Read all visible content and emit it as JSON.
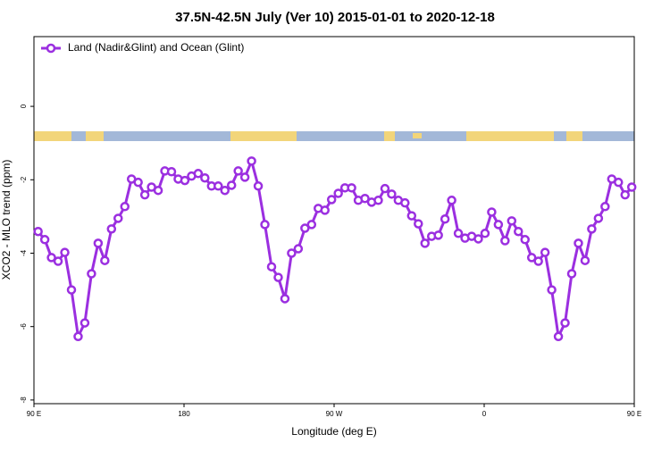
{
  "chart_data": {
    "type": "line",
    "title": "37.5N-42.5N July (Ver 10)   2015-01-01 to 2020-12-18",
    "x_label": "Longitude (deg E)",
    "y_label": "XCO2 - MLO trend (ppm)",
    "xlim": [
      90,
      450
    ],
    "xticks": [
      {
        "value": 90,
        "label": "90 E"
      },
      {
        "value": 180,
        "label": "180"
      },
      {
        "value": 270,
        "label": "90 W"
      },
      {
        "value": 360,
        "label": "0"
      },
      {
        "value": 450,
        "label": "90 E"
      }
    ],
    "ylim": [
      -8.1,
      1.9
    ],
    "yticks": [
      0,
      -2,
      -4,
      -6,
      -8
    ],
    "x": [
      92.5,
      96.5,
      100.5,
      104.5,
      108.5,
      112.5,
      116.5,
      120.5,
      124.5,
      128.5,
      132.5,
      136.5,
      140.5,
      144.5,
      148.5,
      152.5,
      156.5,
      160.5,
      164.5,
      168.5,
      172.5,
      176.5,
      180.5,
      184.5,
      188.5,
      192.5,
      196.5,
      200.5,
      204.5,
      208.5,
      212.5,
      216.5,
      220.5,
      224.5,
      228.5,
      232.5,
      236.5,
      240.5,
      244.5,
      248.5,
      252.5,
      256.5,
      260.5,
      264.5,
      268.5,
      272.5,
      276.5,
      280.5,
      284.5,
      288.5,
      292.5,
      296.5,
      300.5,
      304.5,
      308.5,
      312.5,
      316.5,
      320.5,
      324.5,
      328.5,
      332.5,
      336.5,
      340.5,
      344.5,
      348.5,
      352.5,
      356.5,
      360.5,
      364.5,
      368.5,
      372.5,
      376.5,
      380.5,
      384.5,
      388.5,
      392.5,
      396.5,
      400.5,
      404.5,
      408.5,
      412.5,
      416.5,
      420.5,
      424.5,
      428.5,
      432.5,
      436.5,
      440.5,
      444.5,
      448.5
    ],
    "series": [
      {
        "name": "Land (Nadir&Glint) and Ocean (Glint)",
        "color": "#9b2fe0",
        "values": [
          -3.41,
          -3.63,
          -4.12,
          -4.22,
          -3.98,
          -5.0,
          -6.27,
          -5.9,
          -4.56,
          -3.73,
          -4.2,
          -3.34,
          -3.05,
          -2.73,
          -1.98,
          -2.07,
          -2.41,
          -2.2,
          -2.29,
          -1.76,
          -1.78,
          -1.98,
          -2.02,
          -1.9,
          -1.83,
          -1.95,
          -2.17,
          -2.17,
          -2.29,
          -2.15,
          -1.76,
          -1.93,
          -1.49,
          -2.17,
          -3.22,
          -4.37,
          -4.66,
          -5.24,
          -4.0,
          -3.88,
          -3.32,
          -3.22,
          -2.78,
          -2.83,
          -2.54,
          -2.37,
          -2.22,
          -2.22,
          -2.56,
          -2.51,
          -2.61,
          -2.56,
          -2.24,
          -2.39,
          -2.56,
          -2.63,
          -2.98,
          -3.2,
          -3.73,
          -3.54,
          -3.51,
          -3.07,
          -2.56,
          -3.46,
          -3.59,
          -3.54,
          -3.61,
          -3.46,
          -2.88,
          -3.22,
          -3.66,
          -3.12,
          -3.41,
          -3.63,
          -4.12,
          -4.22,
          -3.98,
          -5.0,
          -6.27,
          -5.9,
          -4.56,
          -3.73,
          -4.2,
          -3.34,
          -3.05,
          -2.73,
          -1.98,
          -2.07,
          -2.41,
          -2.2
        ]
      }
    ]
  }
}
